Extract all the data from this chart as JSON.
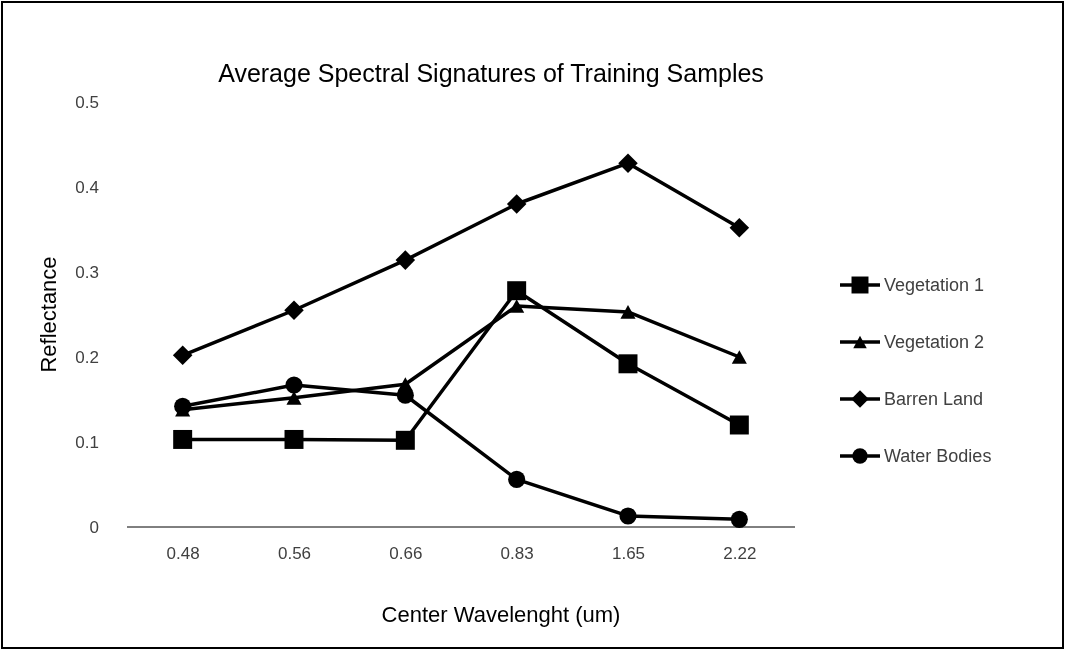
{
  "chart_data": {
    "type": "line",
    "title": "Average Spectral Signatures of Training Samples",
    "xlabel": "Center Wavelenght (um)",
    "ylabel": "Reflectance",
    "categories": [
      "0.48",
      "0.56",
      "0.66",
      "0.83",
      "1.65",
      "2.22"
    ],
    "ylim": [
      0,
      0.5
    ],
    "yticks": [
      0,
      0.1,
      0.2,
      0.3,
      0.4,
      0.5
    ],
    "grid": false,
    "legend": "right",
    "line_style": "solid",
    "series": [
      {
        "name": "Vegetation 1",
        "color": "#000000",
        "marker": "square",
        "values": [
          0.103,
          0.103,
          0.102,
          0.278,
          0.192,
          0.12
        ]
      },
      {
        "name": "Vegetation 2",
        "color": "#000000",
        "marker": "triangle",
        "values": [
          0.138,
          0.152,
          0.168,
          0.26,
          0.253,
          0.2
        ]
      },
      {
        "name": "Barren Land",
        "color": "#000000",
        "marker": "diamond",
        "values": [
          0.202,
          0.255,
          0.314,
          0.38,
          0.428,
          0.352
        ]
      },
      {
        "name": "Water Bodies",
        "color": "#000000",
        "marker": "circle",
        "values": [
          0.142,
          0.167,
          0.155,
          0.056,
          0.013,
          0.009
        ]
      }
    ]
  }
}
